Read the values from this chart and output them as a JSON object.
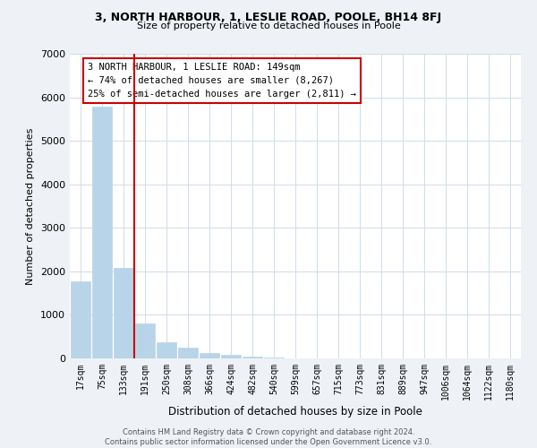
{
  "title_line1": "3, NORTH HARBOUR, 1, LESLIE ROAD, POOLE, BH14 8FJ",
  "title_line2": "Size of property relative to detached houses in Poole",
  "xlabel": "Distribution of detached houses by size in Poole",
  "ylabel": "Number of detached properties",
  "bar_labels": [
    "17sqm",
    "75sqm",
    "133sqm",
    "191sqm",
    "250sqm",
    "308sqm",
    "366sqm",
    "424sqm",
    "482sqm",
    "540sqm",
    "599sqm",
    "657sqm",
    "715sqm",
    "773sqm",
    "831sqm",
    "889sqm",
    "947sqm",
    "1006sqm",
    "1064sqm",
    "1122sqm",
    "1180sqm"
  ],
  "bar_values": [
    1780,
    5780,
    2080,
    800,
    370,
    240,
    120,
    80,
    40,
    20,
    10,
    5,
    5,
    0,
    0,
    0,
    0,
    0,
    0,
    0,
    0
  ],
  "bar_color": "#b8d4e8",
  "bar_edge_color": "#b8d4e8",
  "vline_x": 2.5,
  "vline_color": "#cc0000",
  "annotation_text": "3 NORTH HARBOUR, 1 LESLIE ROAD: 149sqm\n← 74% of detached houses are smaller (8,267)\n25% of semi-detached houses are larger (2,811) →",
  "annotation_box_color": "#ffffff",
  "annotation_box_edge": "#cc0000",
  "ylim": [
    0,
    7000
  ],
  "yticks": [
    0,
    1000,
    2000,
    3000,
    4000,
    5000,
    6000,
    7000
  ],
  "footer_line1": "Contains HM Land Registry data © Crown copyright and database right 2024.",
  "footer_line2": "Contains public sector information licensed under the Open Government Licence v3.0.",
  "bg_color": "#eef2f7",
  "plot_bg_color": "#ffffff",
  "grid_color": "#d0dce8"
}
